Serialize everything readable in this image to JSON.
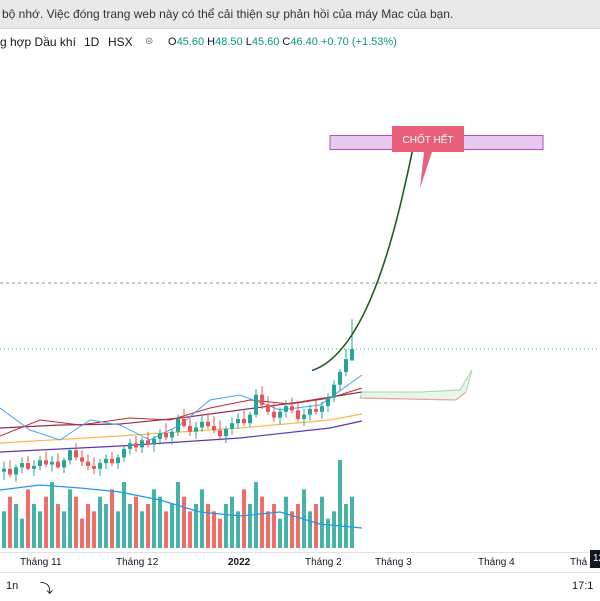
{
  "notice": "bộ nhớ. Việc đóng trang web này có thể cải thiện sự phản hồi của máy Mac của bạn.",
  "legend": {
    "symbol": "g hợp Dầu khí",
    "interval": "1D",
    "exchange": "HSX",
    "open_label": "O",
    "open": "45.60",
    "high_label": "H",
    "high": "48.50",
    "low_label": "L",
    "low": "45.60",
    "close_label": "C",
    "close": "46.40",
    "change": "+0.70 (+1.53%)"
  },
  "annotation": {
    "callout_text": "CHỐT HẾT",
    "color": "#e8607a",
    "target_zone_color": "#e7c8ef"
  },
  "colors": {
    "up": "#26a69a",
    "down": "#ef5350",
    "projection": "#1b5e20"
  },
  "chart_data": {
    "type": "candlestick",
    "x_tick_labels": [
      "Tháng 11",
      "Tháng 12",
      "2022",
      "Tháng 2",
      "Tháng 3",
      "Tháng 4",
      "Thá"
    ],
    "ylim": [
      33,
      66
    ],
    "candles": [
      {
        "o": 37.8,
        "h": 38.5,
        "l": 37.2,
        "c": 38.0
      },
      {
        "o": 38.0,
        "h": 38.6,
        "l": 37.4,
        "c": 37.6
      },
      {
        "o": 37.6,
        "h": 38.3,
        "l": 37.1,
        "c": 38.1
      },
      {
        "o": 38.1,
        "h": 38.8,
        "l": 37.7,
        "c": 38.4
      },
      {
        "o": 38.4,
        "h": 38.9,
        "l": 37.9,
        "c": 38.0
      },
      {
        "o": 38.0,
        "h": 38.6,
        "l": 37.5,
        "c": 38.2
      },
      {
        "o": 38.2,
        "h": 38.9,
        "l": 37.9,
        "c": 38.6
      },
      {
        "o": 38.6,
        "h": 39.2,
        "l": 38.1,
        "c": 38.3
      },
      {
        "o": 38.3,
        "h": 38.9,
        "l": 37.8,
        "c": 38.5
      },
      {
        "o": 38.5,
        "h": 39.1,
        "l": 38.0,
        "c": 38.1
      },
      {
        "o": 38.1,
        "h": 38.8,
        "l": 37.7,
        "c": 38.6
      },
      {
        "o": 38.6,
        "h": 39.5,
        "l": 38.3,
        "c": 39.3
      },
      {
        "o": 39.3,
        "h": 39.8,
        "l": 38.6,
        "c": 38.8
      },
      {
        "o": 38.8,
        "h": 39.3,
        "l": 38.2,
        "c": 38.5
      },
      {
        "o": 38.5,
        "h": 39.0,
        "l": 37.9,
        "c": 38.2
      },
      {
        "o": 38.2,
        "h": 38.8,
        "l": 37.6,
        "c": 38.0
      },
      {
        "o": 38.0,
        "h": 38.7,
        "l": 37.5,
        "c": 38.4
      },
      {
        "o": 38.4,
        "h": 39.0,
        "l": 38.0,
        "c": 38.7
      },
      {
        "o": 38.7,
        "h": 39.2,
        "l": 38.2,
        "c": 38.4
      },
      {
        "o": 38.4,
        "h": 39.0,
        "l": 38.0,
        "c": 38.8
      },
      {
        "o": 38.8,
        "h": 39.6,
        "l": 38.5,
        "c": 39.4
      },
      {
        "o": 39.4,
        "h": 40.1,
        "l": 39.0,
        "c": 39.8
      },
      {
        "o": 39.8,
        "h": 40.3,
        "l": 39.2,
        "c": 39.5
      },
      {
        "o": 39.5,
        "h": 40.2,
        "l": 39.1,
        "c": 40.0
      },
      {
        "o": 40.0,
        "h": 40.6,
        "l": 39.5,
        "c": 39.7
      },
      {
        "o": 39.7,
        "h": 40.3,
        "l": 39.2,
        "c": 40.1
      },
      {
        "o": 40.1,
        "h": 40.8,
        "l": 39.7,
        "c": 40.5
      },
      {
        "o": 40.5,
        "h": 41.2,
        "l": 40.0,
        "c": 40.2
      },
      {
        "o": 40.2,
        "h": 40.8,
        "l": 39.7,
        "c": 40.6
      },
      {
        "o": 40.6,
        "h": 41.8,
        "l": 40.3,
        "c": 41.5
      },
      {
        "o": 41.5,
        "h": 42.2,
        "l": 40.9,
        "c": 41.0
      },
      {
        "o": 41.0,
        "h": 41.6,
        "l": 40.3,
        "c": 40.6
      },
      {
        "o": 40.6,
        "h": 41.3,
        "l": 40.1,
        "c": 40.9
      },
      {
        "o": 40.9,
        "h": 41.7,
        "l": 40.6,
        "c": 41.3
      },
      {
        "o": 41.3,
        "h": 41.9,
        "l": 40.8,
        "c": 41.0
      },
      {
        "o": 41.0,
        "h": 41.7,
        "l": 40.5,
        "c": 40.7
      },
      {
        "o": 40.7,
        "h": 41.4,
        "l": 40.0,
        "c": 40.3
      },
      {
        "o": 40.3,
        "h": 41.0,
        "l": 39.8,
        "c": 40.8
      },
      {
        "o": 40.8,
        "h": 41.6,
        "l": 40.4,
        "c": 41.2
      },
      {
        "o": 41.2,
        "h": 41.9,
        "l": 40.8,
        "c": 41.5
      },
      {
        "o": 41.5,
        "h": 42.1,
        "l": 41.0,
        "c": 41.2
      },
      {
        "o": 41.2,
        "h": 42.0,
        "l": 40.9,
        "c": 41.8
      },
      {
        "o": 41.8,
        "h": 43.6,
        "l": 41.6,
        "c": 43.2
      },
      {
        "o": 43.2,
        "h": 43.8,
        "l": 42.2,
        "c": 42.5
      },
      {
        "o": 42.5,
        "h": 43.1,
        "l": 41.8,
        "c": 42.0
      },
      {
        "o": 42.0,
        "h": 42.6,
        "l": 41.3,
        "c": 41.6
      },
      {
        "o": 41.6,
        "h": 42.3,
        "l": 41.1,
        "c": 42.0
      },
      {
        "o": 42.0,
        "h": 42.8,
        "l": 41.6,
        "c": 42.4
      },
      {
        "o": 42.4,
        "h": 43.0,
        "l": 41.9,
        "c": 42.1
      },
      {
        "o": 42.1,
        "h": 42.6,
        "l": 41.3,
        "c": 41.5
      },
      {
        "o": 41.5,
        "h": 42.2,
        "l": 41.0,
        "c": 41.8
      },
      {
        "o": 41.8,
        "h": 42.5,
        "l": 41.4,
        "c": 42.2
      },
      {
        "o": 42.2,
        "h": 42.8,
        "l": 41.8,
        "c": 42.0
      },
      {
        "o": 42.0,
        "h": 42.7,
        "l": 41.5,
        "c": 42.4
      },
      {
        "o": 42.4,
        "h": 43.3,
        "l": 42.0,
        "c": 43.0
      },
      {
        "o": 43.0,
        "h": 44.2,
        "l": 42.7,
        "c": 43.9
      },
      {
        "o": 43.9,
        "h": 45.0,
        "l": 43.5,
        "c": 44.8
      },
      {
        "o": 44.8,
        "h": 46.4,
        "l": 44.5,
        "c": 45.7
      },
      {
        "o": 45.6,
        "h": 48.5,
        "l": 45.6,
        "c": 46.4
      }
    ],
    "volume": [
      5,
      7,
      6,
      4,
      8,
      6,
      5,
      7,
      9,
      6,
      5,
      8,
      7,
      4,
      6,
      5,
      7,
      6,
      8,
      5,
      9,
      6,
      7,
      5,
      6,
      8,
      7,
      5,
      6,
      9,
      7,
      5,
      6,
      8,
      6,
      5,
      4,
      6,
      7,
      5,
      8,
      6,
      9,
      7,
      5,
      6,
      4,
      7,
      5,
      6,
      8,
      5,
      6,
      7,
      4,
      5,
      12,
      6,
      7
    ],
    "projection_target": 60.5,
    "target_zone": [
      60.5,
      61.4
    ]
  }
}
